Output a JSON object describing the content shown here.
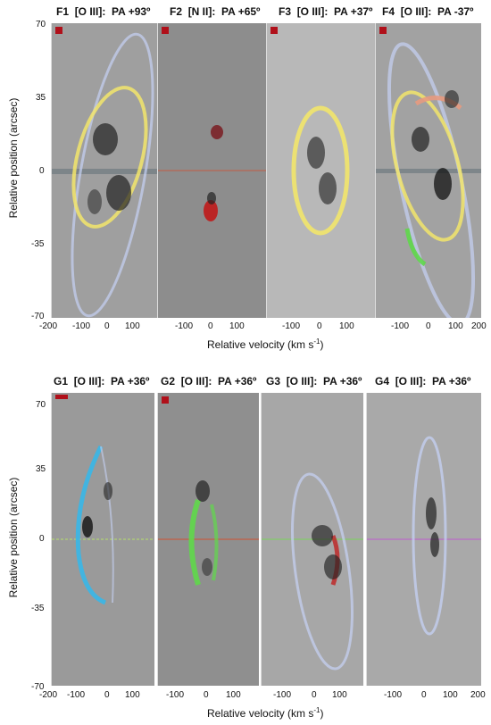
{
  "top_row": {
    "panels": [
      {
        "label": "F1",
        "ion": "[O III]",
        "pa": "PA +93º",
        "bg": "#9f9f9f"
      },
      {
        "label": "F2",
        "ion": "[N II]",
        "pa": "PA +65º",
        "bg": "#8d8d8d"
      },
      {
        "label": "F3",
        "ion": "[O III]",
        "pa": "PA +37º",
        "bg": "#b8b8b8"
      },
      {
        "label": "F4",
        "ion": "[O III]",
        "pa": "PA -37º",
        "bg": "#a2a2a2"
      }
    ],
    "ylabel": "Relative position (arcsec)",
    "yticks": [
      "70",
      "35",
      "0",
      "-35",
      "-70"
    ],
    "xlabel": "Relative velocity (km s-1)",
    "xticks": [
      "-200",
      "-100",
      "0",
      "100",
      "-100",
      "0",
      "100",
      "-100",
      "0",
      "100",
      "-100",
      "0",
      "100",
      "200"
    ]
  },
  "bottom_row": {
    "panels": [
      {
        "label": "G1",
        "ion": "[O III]",
        "pa": "PA +36º",
        "bg": "#9a9a9a"
      },
      {
        "label": "G2",
        "ion": "[O III]",
        "pa": "PA +36º",
        "bg": "#8f8f8f"
      },
      {
        "label": "G3",
        "ion": "[O III]",
        "pa": "PA +36º",
        "bg": "#a7a7a7"
      },
      {
        "label": "G4",
        "ion": "[O III]",
        "pa": "PA +36º",
        "bg": "#a9a9a9"
      }
    ],
    "ylabel": "Relative position (arcsec)",
    "yticks": [
      "70",
      "35",
      "0",
      "-35",
      "-70"
    ],
    "xlabel": "Relative velocity (km s-1)",
    "xticks": [
      "-200",
      "-100",
      "0",
      "100",
      "-100",
      "0",
      "100",
      "-100",
      "0",
      "100",
      "-100",
      "0",
      "100",
      "200"
    ]
  },
  "colors": {
    "yellow": "#f2e56b",
    "blue": "#c6d2f5",
    "red": "#c01818",
    "green": "#5fd84a",
    "cyan": "#39b7e8",
    "salmon": "#e79a7f",
    "magenta": "#c05bd0"
  }
}
